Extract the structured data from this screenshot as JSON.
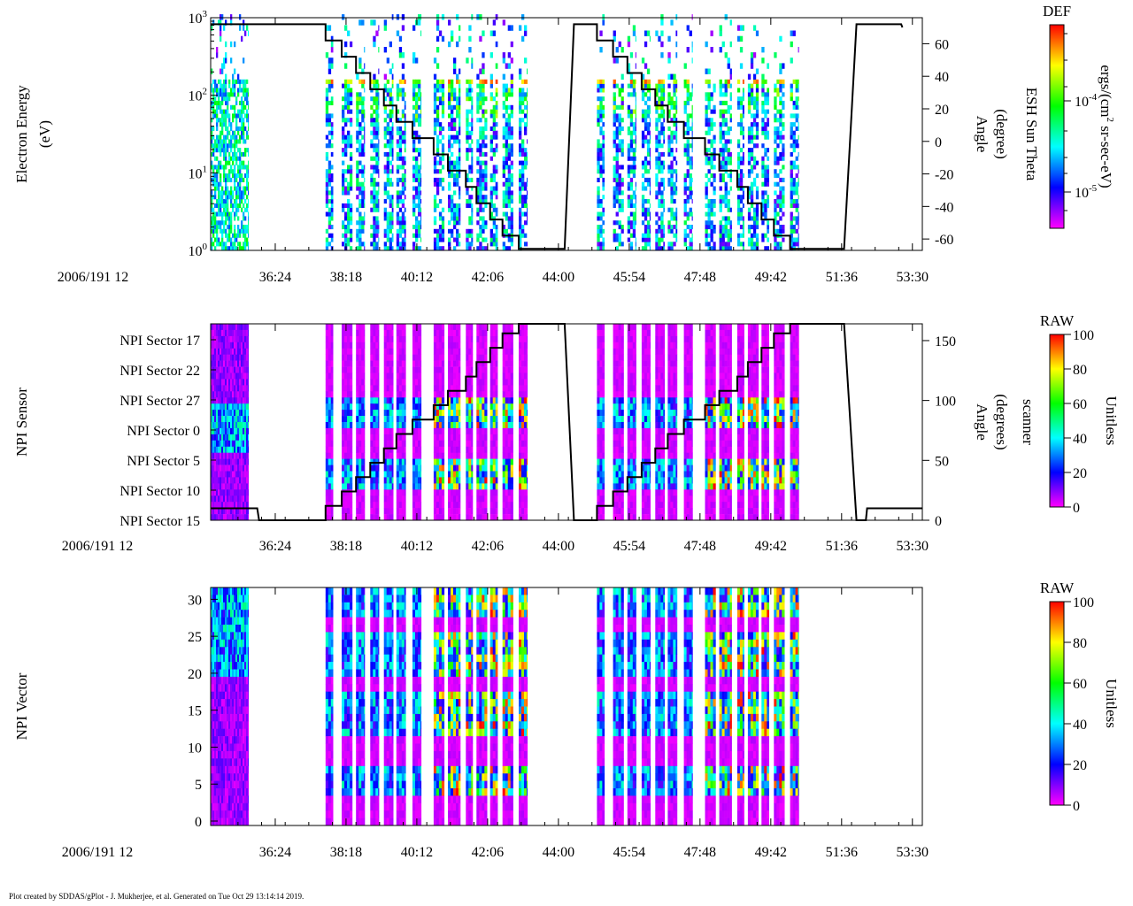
{
  "footer": "Plot created by SDDAS/gPlot - J. Mukherjee, et al.  Generated on Tue Oct 29 13:14:14 2019.",
  "chart_data": [
    {
      "type": "heatmap",
      "id": "electron-energy",
      "ylabel_lines": [
        "Electron Energy",
        "(eV)"
      ],
      "yscale": "log",
      "ylim": [
        1,
        1000
      ],
      "yticks": [
        {
          "base": "10",
          "exp": "0"
        },
        {
          "base": "10",
          "exp": "1"
        },
        {
          "base": "10",
          "exp": "2"
        },
        {
          "base": "10",
          "exp": "3"
        }
      ],
      "right_axis": {
        "label_lines": [
          "ESH Sun Theta",
          "Angle",
          "(degree)"
        ],
        "ylim": [
          -67,
          76
        ],
        "ticks": [
          "-60",
          "-40",
          "-20",
          "0",
          "20",
          "40",
          "60"
        ]
      },
      "xaxis": {
        "date_label": "2006/191 12",
        "range": [
          "34:40",
          "53:46"
        ],
        "ticks": [
          "36:24",
          "38:18",
          "40:12",
          "42:06",
          "44:00",
          "45:54",
          "47:48",
          "49:42",
          "51:36",
          "53:30"
        ]
      },
      "colorbar": {
        "title": "DEF",
        "scale": "log",
        "tick_labels": [
          {
            "base": "10",
            "exp": "-4"
          },
          {
            "base": "10",
            "exp": "-5"
          }
        ],
        "unit": [
          "ergs/(cm",
          "2",
          " sr-sec-eV)"
        ]
      },
      "line_series": {
        "name": "ESH Sun Theta",
        "points": [
          [
            "34:40",
            72
          ],
          [
            "37:45",
            72
          ],
          [
            "37:45",
            62
          ],
          [
            "38:11",
            62
          ],
          [
            "38:11",
            52
          ],
          [
            "38:34",
            52
          ],
          [
            "38:34",
            42
          ],
          [
            "38:57",
            42
          ],
          [
            "38:57",
            32
          ],
          [
            "39:19",
            32
          ],
          [
            "39:19",
            22
          ],
          [
            "39:39",
            22
          ],
          [
            "39:39",
            12
          ],
          [
            "40:05",
            12
          ],
          [
            "40:05",
            2
          ],
          [
            "40:39",
            2
          ],
          [
            "40:39",
            -8
          ],
          [
            "41:02",
            -8
          ],
          [
            "41:02",
            -18
          ],
          [
            "41:31",
            -18
          ],
          [
            "41:31",
            -28
          ],
          [
            "41:48",
            -28
          ],
          [
            "41:48",
            -38
          ],
          [
            "42:10",
            -38
          ],
          [
            "42:10",
            -48
          ],
          [
            "42:30",
            -48
          ],
          [
            "42:30",
            -58
          ],
          [
            "42:56",
            -58
          ],
          [
            "42:56",
            -66
          ],
          [
            "44:10",
            -66
          ],
          [
            "44:25",
            72
          ],
          [
            "45:02",
            72
          ],
          [
            "45:02",
            62
          ],
          [
            "45:28",
            62
          ],
          [
            "45:28",
            52
          ],
          [
            "45:51",
            52
          ],
          [
            "45:51",
            42
          ],
          [
            "46:14",
            42
          ],
          [
            "46:14",
            32
          ],
          [
            "46:36",
            32
          ],
          [
            "46:36",
            22
          ],
          [
            "46:56",
            22
          ],
          [
            "46:56",
            12
          ],
          [
            "47:22",
            12
          ],
          [
            "47:22",
            2
          ],
          [
            "47:56",
            2
          ],
          [
            "47:56",
            -8
          ],
          [
            "48:19",
            -8
          ],
          [
            "48:19",
            -18
          ],
          [
            "48:48",
            -18
          ],
          [
            "48:48",
            -28
          ],
          [
            "49:05",
            -28
          ],
          [
            "49:05",
            -38
          ],
          [
            "49:27",
            -38
          ],
          [
            "49:27",
            -48
          ],
          [
            "49:47",
            -48
          ],
          [
            "49:47",
            -58
          ],
          [
            "50:13",
            -58
          ],
          [
            "50:13",
            -66
          ],
          [
            "51:40",
            -66
          ],
          [
            "52:00",
            72
          ],
          [
            "53:12",
            72
          ],
          [
            "53:14",
            70
          ]
        ]
      }
    },
    {
      "type": "heatmap",
      "id": "npi-sensor",
      "ylabel_lines": [
        "NPI Sensor"
      ],
      "ylim": [
        0,
        32
      ],
      "yticks": [
        "NPI Sector 17",
        "NPI Sector 22",
        "NPI Sector 27",
        "NPI Sector 0",
        "NPI Sector 5",
        "NPI Sector 10",
        "NPI Sector 15"
      ],
      "right_axis": {
        "label_lines": [
          "scanner",
          "Angle",
          "(degrees)"
        ],
        "ylim": [
          0,
          164
        ],
        "ticks": [
          "0",
          "50",
          "100",
          "150"
        ]
      },
      "xaxis": {
        "date_label": "2006/191 12",
        "range": [
          "34:40",
          "53:46"
        ],
        "ticks": [
          "36:24",
          "38:18",
          "40:12",
          "42:06",
          "44:00",
          "45:54",
          "47:48",
          "49:42",
          "51:36",
          "53:30"
        ]
      },
      "colorbar": {
        "title": "RAW",
        "range": [
          0,
          100
        ],
        "tick_labels": [
          "0",
          "20",
          "40",
          "60",
          "80",
          "100"
        ],
        "unit": "Unitless"
      },
      "line_series": {
        "name": "scanner angle",
        "points": [
          [
            "34:40",
            10
          ],
          [
            "35:55",
            10
          ],
          [
            "35:58",
            0
          ],
          [
            "37:45",
            0
          ],
          [
            "37:45",
            12
          ],
          [
            "38:11",
            12
          ],
          [
            "38:11",
            24
          ],
          [
            "38:34",
            24
          ],
          [
            "38:34",
            36
          ],
          [
            "38:57",
            36
          ],
          [
            "38:57",
            48
          ],
          [
            "39:19",
            48
          ],
          [
            "39:19",
            60
          ],
          [
            "39:39",
            60
          ],
          [
            "39:39",
            72
          ],
          [
            "40:05",
            72
          ],
          [
            "40:05",
            84
          ],
          [
            "40:39",
            84
          ],
          [
            "40:39",
            96
          ],
          [
            "41:02",
            96
          ],
          [
            "41:02",
            108
          ],
          [
            "41:31",
            108
          ],
          [
            "41:31",
            120
          ],
          [
            "41:48",
            120
          ],
          [
            "41:48",
            132
          ],
          [
            "42:10",
            132
          ],
          [
            "42:10",
            144
          ],
          [
            "42:30",
            144
          ],
          [
            "42:30",
            156
          ],
          [
            "42:56",
            156
          ],
          [
            "42:56",
            164
          ],
          [
            "44:10",
            164
          ],
          [
            "44:25",
            0
          ],
          [
            "45:02",
            0
          ],
          [
            "45:02",
            12
          ],
          [
            "45:28",
            12
          ],
          [
            "45:28",
            24
          ],
          [
            "45:51",
            24
          ],
          [
            "45:51",
            36
          ],
          [
            "46:14",
            36
          ],
          [
            "46:14",
            48
          ],
          [
            "46:36",
            48
          ],
          [
            "46:36",
            60
          ],
          [
            "46:56",
            60
          ],
          [
            "46:56",
            72
          ],
          [
            "47:22",
            72
          ],
          [
            "47:22",
            84
          ],
          [
            "47:56",
            84
          ],
          [
            "47:56",
            96
          ],
          [
            "48:19",
            96
          ],
          [
            "48:19",
            108
          ],
          [
            "48:48",
            108
          ],
          [
            "48:48",
            120
          ],
          [
            "49:05",
            120
          ],
          [
            "49:05",
            132
          ],
          [
            "49:27",
            132
          ],
          [
            "49:27",
            144
          ],
          [
            "49:47",
            144
          ],
          [
            "49:47",
            156
          ],
          [
            "50:13",
            156
          ],
          [
            "50:13",
            164
          ],
          [
            "51:40",
            164
          ],
          [
            "52:00",
            0
          ],
          [
            "52:15",
            0
          ],
          [
            "52:17",
            10
          ],
          [
            "53:46",
            10
          ]
        ]
      }
    },
    {
      "type": "heatmap",
      "id": "npi-vector",
      "ylabel_lines": [
        "NPI Vector"
      ],
      "ylim": [
        -0.6,
        31.6
      ],
      "yticks": [
        "0",
        "5",
        "10",
        "15",
        "20",
        "25",
        "30"
      ],
      "xaxis": {
        "date_label": "2006/191 12",
        "range": [
          "34:40",
          "53:46"
        ],
        "ticks": [
          "36:24",
          "38:18",
          "40:12",
          "42:06",
          "44:00",
          "45:54",
          "47:48",
          "49:42",
          "51:36",
          "53:30"
        ]
      },
      "colorbar": {
        "title": "RAW",
        "range": [
          0,
          100
        ],
        "tick_labels": [
          "0",
          "20",
          "40",
          "60",
          "80",
          "100"
        ],
        "unit": "Unitless"
      }
    }
  ],
  "data_intervals": {
    "continuous_block": [
      "34:40",
      "35:41"
    ],
    "stripes": [
      [
        "37:45",
        "37:57"
      ],
      [
        "38:11",
        "38:28"
      ],
      [
        "38:34",
        "38:48"
      ],
      [
        "38:57",
        "39:11"
      ],
      [
        "39:19",
        "39:34"
      ],
      [
        "39:39",
        "39:54"
      ],
      [
        "40:05",
        "40:19"
      ],
      [
        "40:39",
        "40:56"
      ],
      [
        "41:02",
        "41:22"
      ],
      [
        "41:31",
        "41:42"
      ],
      [
        "41:48",
        "42:05"
      ],
      [
        "42:10",
        "42:22"
      ],
      [
        "42:30",
        "42:47"
      ],
      [
        "42:56",
        "43:10"
      ],
      [
        "45:02",
        "45:14"
      ],
      [
        "45:28",
        "45:45"
      ],
      [
        "45:51",
        "46:05"
      ],
      [
        "46:14",
        "46:28"
      ],
      [
        "46:36",
        "46:51"
      ],
      [
        "46:56",
        "47:11"
      ],
      [
        "47:22",
        "47:36"
      ],
      [
        "47:56",
        "48:13"
      ],
      [
        "48:19",
        "48:39"
      ],
      [
        "48:48",
        "48:59"
      ],
      [
        "49:05",
        "49:22"
      ],
      [
        "49:27",
        "49:39"
      ],
      [
        "49:47",
        "50:04"
      ],
      [
        "50:13",
        "50:27"
      ]
    ]
  },
  "colormap": [
    "#ff00ff",
    "#0000ff",
    "#00ffff",
    "#00ff00",
    "#ffff00",
    "#ff0000"
  ]
}
